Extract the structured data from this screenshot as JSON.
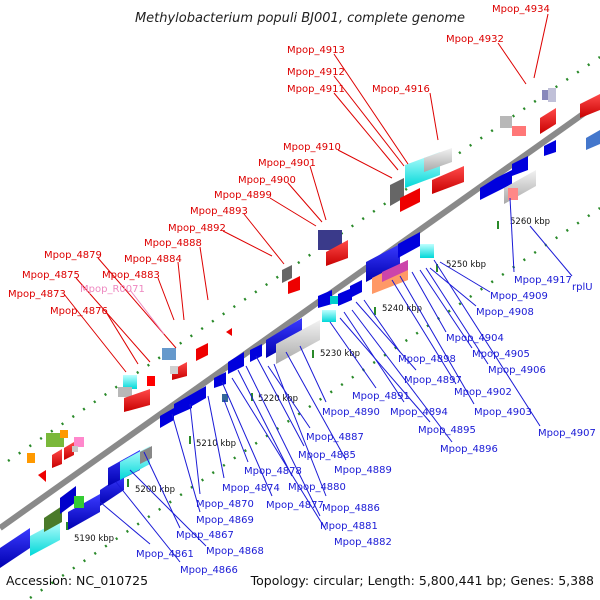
{
  "title": "Methylobacterium populi BJ001, complete genome",
  "footer": {
    "accession": "Accession: NC_010725",
    "topology": "Topology: circular; Length: 5,800,441 bp; Genes: 5,388"
  },
  "colors": {
    "top_strand_label": "#dd0000",
    "bottom_strand_label": "#1a1ad6",
    "rna_label": "#ee88c0",
    "backbone": "#8a8a8a",
    "dots": "#2a8a2a",
    "gene_red": "#ff0000",
    "gene_blue": "#0000ee",
    "gene_cyan": "#00ffff",
    "gene_gray": "#c8c8c8"
  },
  "ticks": [
    "5190 kbp",
    "5200 kbp",
    "5210 kbp",
    "5220 kbp",
    "5230 kbp",
    "5240 kbp",
    "5250 kbp",
    "5260 kbp"
  ],
  "red_labels": [
    "Mpop_4934",
    "Mpop_4932",
    "Mpop_4913",
    "Mpop_4912",
    "Mpop_4911",
    "Mpop_4916",
    "Mpop_4910",
    "Mpop_4901",
    "Mpop_4900",
    "Mpop_4899",
    "Mpop_4893",
    "Mpop_4892",
    "Mpop_4888",
    "Mpop_4879",
    "Mpop_4884",
    "Mpop_4875",
    "Mpop_4883",
    "Mpop_4873",
    "Mpop_4876"
  ],
  "pink_labels": [
    "Mpop_R0071"
  ],
  "blue_labels": [
    "Mpop_4917",
    "rplU",
    "Mpop_4909",
    "Mpop_4908",
    "Mpop_4904",
    "Mpop_4905",
    "Mpop_4906",
    "Mpop_4898",
    "Mpop_4897",
    "Mpop_4902",
    "Mpop_4903",
    "Mpop_4907",
    "Mpop_4891",
    "Mpop_4890",
    "Mpop_4894",
    "Mpop_4895",
    "Mpop_4896",
    "Mpop_4887",
    "Mpop_4885",
    "Mpop_4889",
    "Mpop_4878",
    "Mpop_4880",
    "Mpop_4874",
    "Mpop_4877",
    "Mpop_4870",
    "Mpop_4886",
    "Mpop_4869",
    "Mpop_4881",
    "Mpop_4867",
    "Mpop_4882",
    "Mpop_4861",
    "Mpop_4868",
    "Mpop_4866"
  ]
}
